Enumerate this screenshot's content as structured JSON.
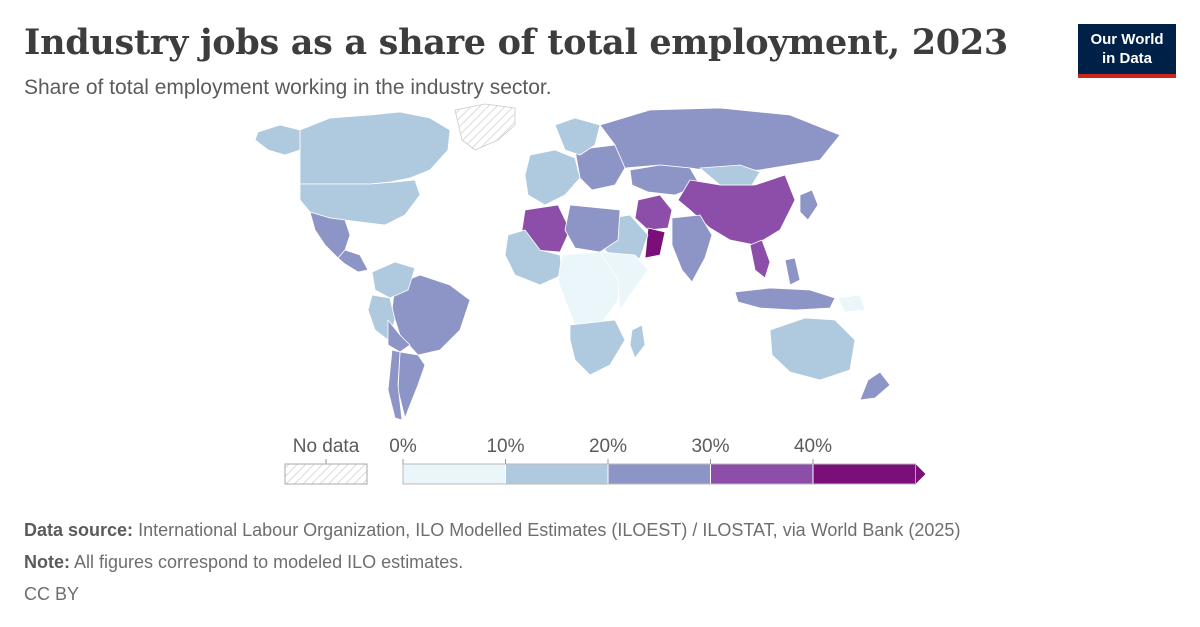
{
  "header": {
    "title": "Industry jobs as a share of total employment, 2023",
    "subtitle": "Share of total employment working in the industry sector."
  },
  "logo": {
    "line1": "Our World",
    "line2": "in Data"
  },
  "legend": {
    "no_data_label": "No data",
    "bins": [
      {
        "label": "0%",
        "color": "#eaf6f9"
      },
      {
        "label": "10%",
        "color": "#afc9df"
      },
      {
        "label": "20%",
        "color": "#8d94c6"
      },
      {
        "label": "30%",
        "color": "#8c4ea8"
      },
      {
        "label": "40%",
        "color": "#7a0f7a"
      }
    ]
  },
  "footer": {
    "source_label": "Data source:",
    "source_text": "International Labour Organization, ILO Modelled Estimates (ILOEST) / ILOSTAT, via World Bank (2025)",
    "note_label": "Note:",
    "note_text": "All figures correspond to modeled ILO estimates.",
    "license": "CC BY"
  },
  "colors": {
    "bin_0_10": "#eaf6f9",
    "bin_10_20": "#afc9df",
    "bin_20_30": "#8d94c6",
    "bin_30_40": "#8c4ea8",
    "bin_40_plus": "#7a0f7a",
    "no_data": "#ffffff",
    "border": "#ffffff"
  },
  "map_data": {
    "regions": [
      {
        "name": "Canada",
        "bin": "10-20%"
      },
      {
        "name": "United States",
        "bin": "10-20%"
      },
      {
        "name": "Mexico",
        "bin": "20-30%"
      },
      {
        "name": "Central America",
        "bin": "20-30%"
      },
      {
        "name": "Greenland",
        "bin": "No data"
      },
      {
        "name": "Alaska",
        "bin": "10-20%"
      },
      {
        "name": "Brazil",
        "bin": "20-30%"
      },
      {
        "name": "Argentina",
        "bin": "20-30%"
      },
      {
        "name": "Peru",
        "bin": "10-20%"
      },
      {
        "name": "Colombia",
        "bin": "10-20%"
      },
      {
        "name": "Bolivia",
        "bin": "20-30%"
      },
      {
        "name": "Chile",
        "bin": "20-30%"
      },
      {
        "name": "Western Europe",
        "bin": "10-20%"
      },
      {
        "name": "Eastern Europe",
        "bin": "20-30%"
      },
      {
        "name": "Scandinavia",
        "bin": "10-20%"
      },
      {
        "name": "Russia",
        "bin": "20-30%"
      },
      {
        "name": "Kazakhstan",
        "bin": "20-30%"
      },
      {
        "name": "China",
        "bin": "30-40%"
      },
      {
        "name": "Mongolia",
        "bin": "10-20%"
      },
      {
        "name": "Iran",
        "bin": "30-40%"
      },
      {
        "name": "Oman",
        "bin": "40%+"
      },
      {
        "name": "Saudi Arabia",
        "bin": "10-20%"
      },
      {
        "name": "India",
        "bin": "20-30%"
      },
      {
        "name": "Vietnam",
        "bin": "30-40%"
      },
      {
        "name": "Indonesia",
        "bin": "20-30%"
      },
      {
        "name": "Philippines",
        "bin": "20-30%"
      },
      {
        "name": "Japan",
        "bin": "20-30%"
      },
      {
        "name": "Algeria",
        "bin": "30-40%"
      },
      {
        "name": "North Africa",
        "bin": "20-30%"
      },
      {
        "name": "West Africa",
        "bin": "10-20%"
      },
      {
        "name": "Central Africa",
        "bin": "0-10%"
      },
      {
        "name": "East Africa",
        "bin": "0-10%"
      },
      {
        "name": "Southern Africa",
        "bin": "10-20%"
      },
      {
        "name": "Madagascar",
        "bin": "10-20%"
      },
      {
        "name": "Australia",
        "bin": "10-20%"
      },
      {
        "name": "New Zealand",
        "bin": "20-30%"
      },
      {
        "name": "Papua New Guinea",
        "bin": "0-10%"
      }
    ]
  }
}
